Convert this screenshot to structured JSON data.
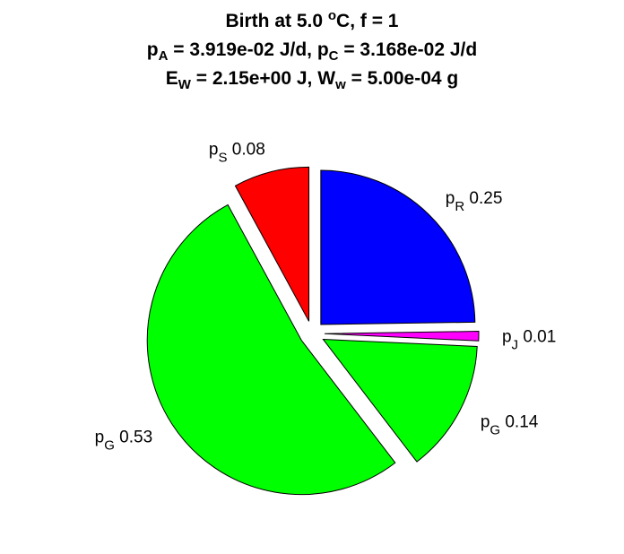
{
  "title": {
    "line1": {
      "prefix": "Birth at 5.0 ",
      "sup": "o",
      "suffix": "C, f = 1"
    },
    "line2": {
      "p_a_sym": "p",
      "p_a_sub": "A",
      "p_a_val": " = 3.919e-02 J/d, ",
      "p_c_sym": "p",
      "p_c_sub": "C",
      "p_c_val": " = 3.168e-02 J/d"
    },
    "line3": {
      "e_w_sym": "E",
      "e_w_sub": "W",
      "e_w_val": " = 2.15e+00 J, ",
      "w_w_sym": "W",
      "w_w_sub": "w",
      "w_w_val": " = 5.00e-04 g"
    }
  },
  "chart_data": {
    "type": "pie",
    "exploded": true,
    "slices": [
      {
        "sym": "p",
        "sub": "R",
        "value": 0.25,
        "label": "0.25",
        "color": "#0000ff"
      },
      {
        "sym": "p",
        "sub": "J",
        "value": 0.01,
        "label": "0.01",
        "color": "#ff00ff"
      },
      {
        "sym": "p",
        "sub": "G",
        "value": 0.14,
        "label": "0.14",
        "color": "#00ff00"
      },
      {
        "sym": "p",
        "sub": "G",
        "value": 0.53,
        "label": "0.53",
        "color": "#00ff00"
      },
      {
        "sym": "p",
        "sub": "S",
        "value": 0.08,
        "label": "0.08",
        "color": "#ff0000"
      }
    ]
  }
}
